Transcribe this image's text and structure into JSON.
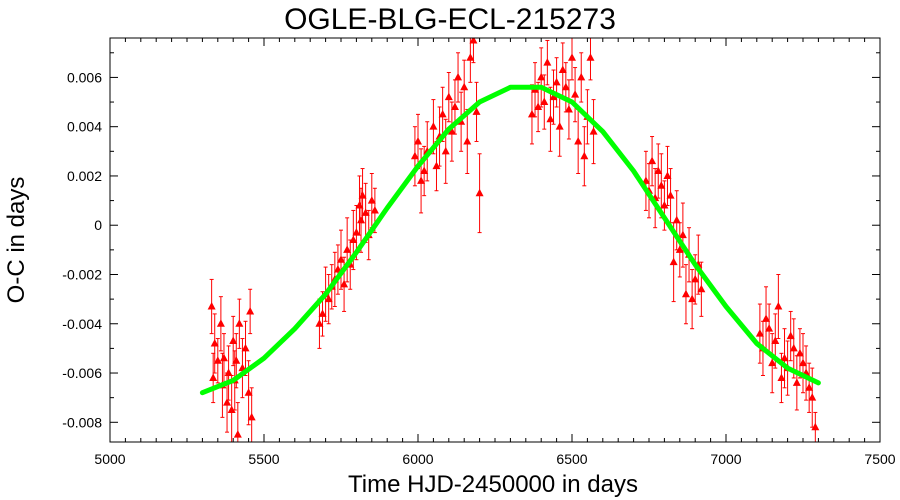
{
  "chart_data": {
    "type": "scatter",
    "title": "OGLE-BLG-ECL-215273",
    "xlabel": "Time HJD-2450000 in days",
    "ylabel": "O-C in days",
    "xlim": [
      5000,
      7500
    ],
    "ylim": [
      -0.0088,
      0.0076
    ],
    "x_ticks": [
      5000,
      5500,
      6000,
      6500,
      7000,
      7500
    ],
    "x_tick_labels": [
      "5000",
      "5500",
      "6000",
      "6500",
      "7000",
      "7500"
    ],
    "y_ticks": [
      -0.008,
      -0.006,
      -0.004,
      -0.002,
      0,
      0.002,
      0.004,
      0.006
    ],
    "y_tick_labels": [
      "-0.008",
      "-0.006",
      "-0.004",
      "-0.002",
      "0",
      "0.002",
      "0.004",
      "0.006"
    ],
    "grid": false,
    "colors": {
      "points": "#ff0000",
      "model": "#00ff00",
      "axes": "#000000"
    },
    "series": [
      {
        "marker": "triangle",
        "color": "#ff0000",
        "x": [
          5330,
          5335,
          5340,
          5350,
          5360,
          5365,
          5370,
          5380,
          5385,
          5395,
          5400,
          5405,
          5410,
          5415,
          5420,
          5430,
          5440,
          5450,
          5455,
          5460,
          5680,
          5690,
          5700,
          5710,
          5720,
          5730,
          5740,
          5750,
          5760,
          5770,
          5780,
          5790,
          5800,
          5810,
          5815,
          5820,
          5830,
          5840,
          5850,
          5860,
          5990,
          6000,
          6010,
          6020,
          6030,
          6050,
          6060,
          6070,
          6080,
          6090,
          6100,
          6110,
          6120,
          6130,
          6140,
          6150,
          6160,
          6170,
          6180,
          6190,
          6200,
          6370,
          6380,
          6390,
          6400,
          6410,
          6420,
          6430,
          6440,
          6450,
          6460,
          6470,
          6480,
          6490,
          6500,
          6510,
          6520,
          6530,
          6540,
          6550,
          6560,
          6570,
          6740,
          6750,
          6760,
          6770,
          6780,
          6790,
          6800,
          6810,
          6820,
          6830,
          6840,
          6850,
          6860,
          6870,
          6880,
          6890,
          6900,
          6910,
          6920,
          7110,
          7120,
          7130,
          7140,
          7150,
          7160,
          7170,
          7180,
          7190,
          7200,
          7210,
          7220,
          7230,
          7240,
          7250,
          7260,
          7270,
          7280,
          7290
        ],
        "y": [
          -0.0033,
          -0.0062,
          -0.0048,
          -0.0055,
          -0.004,
          -0.0065,
          -0.0054,
          -0.0072,
          -0.006,
          -0.0075,
          -0.0047,
          -0.0063,
          -0.0055,
          -0.0085,
          -0.004,
          -0.0058,
          -0.005,
          -0.0068,
          -0.0035,
          -0.0078,
          -0.004,
          -0.0036,
          -0.0028,
          -0.003,
          -0.0025,
          -0.0022,
          -0.0018,
          -0.0014,
          -0.0024,
          -0.001,
          -0.0016,
          -0.0006,
          -0.0003,
          0.0008,
          0.0002,
          0.0012,
          0.0005,
          -0.0004,
          0.001,
          0.0006,
          0.0028,
          0.0034,
          0.0018,
          0.0022,
          0.003,
          0.004,
          0.0024,
          0.0036,
          0.0045,
          0.003,
          0.0052,
          0.0038,
          0.0048,
          0.006,
          0.0042,
          0.0056,
          0.0034,
          0.0068,
          0.0075,
          0.0046,
          0.0013,
          0.0045,
          0.0055,
          0.0048,
          0.006,
          0.005,
          0.0066,
          0.0043,
          0.0052,
          0.0058,
          0.004,
          0.0063,
          0.0056,
          0.0047,
          0.0068,
          0.0053,
          0.0034,
          0.006,
          0.0028,
          0.0044,
          0.0068,
          0.0038,
          0.0018,
          0.0014,
          0.0026,
          0.0011,
          0.0022,
          0.0016,
          0.0008,
          0.002,
          0.0012,
          -0.0015,
          0.0002,
          -0.001,
          -0.0004,
          -0.0028,
          -0.0012,
          -0.003,
          -0.0022,
          -0.0016,
          -0.0026,
          -0.0044,
          -0.005,
          -0.0038,
          -0.0042,
          -0.0056,
          -0.0047,
          -0.0033,
          -0.0062,
          -0.0054,
          -0.0058,
          -0.0045,
          -0.005,
          -0.0064,
          -0.0052,
          -0.0056,
          -0.006,
          -0.0066,
          -0.007,
          -0.0082
        ],
        "err": [
          0.0011,
          0.001,
          0.0012,
          0.0009,
          0.0011,
          0.0013,
          0.001,
          0.0012,
          0.0011,
          0.0014,
          0.001,
          0.0012,
          0.0011,
          0.0013,
          0.001,
          0.0012,
          0.0011,
          0.0013,
          0.0009,
          0.0012,
          0.001,
          0.0009,
          0.0011,
          0.001,
          0.0009,
          0.0011,
          0.001,
          0.0012,
          0.0011,
          0.0013,
          0.001,
          0.0012,
          0.0011,
          0.0012,
          0.0013,
          0.0011,
          0.0012,
          0.001,
          0.0011,
          0.0009,
          0.0012,
          0.0011,
          0.0013,
          0.001,
          0.0012,
          0.0011,
          0.001,
          0.0012,
          0.0011,
          0.0013,
          0.001,
          0.0012,
          0.0011,
          0.001,
          0.0012,
          0.0011,
          0.0013,
          0.001,
          0.0009,
          0.0012,
          0.0016,
          0.0012,
          0.0011,
          0.001,
          0.0012,
          0.0011,
          0.0009,
          0.0013,
          0.0011,
          0.001,
          0.0012,
          0.0011,
          0.001,
          0.0012,
          0.0009,
          0.0011,
          0.0013,
          0.001,
          0.0012,
          0.0011,
          0.0009,
          0.0013,
          0.0012,
          0.0011,
          0.001,
          0.0012,
          0.0011,
          0.0013,
          0.001,
          0.0012,
          0.0011,
          0.0016,
          0.0012,
          0.0011,
          0.0013,
          0.0012,
          0.0011,
          0.0012,
          0.001,
          0.0012,
          0.0011,
          0.0012,
          0.0011,
          0.0013,
          0.001,
          0.0012,
          0.0011,
          0.0013,
          0.001,
          0.0012,
          0.0011,
          0.001,
          0.0012,
          0.0011,
          0.001,
          0.0012,
          0.0011,
          0.001,
          0.0012,
          0.0006
        ]
      },
      {
        "type": "line",
        "color": "#00ff00",
        "x": [
          5300,
          5400,
          5500,
          5600,
          5700,
          5800,
          5900,
          6000,
          6100,
          6200,
          6300,
          6400,
          6500,
          6600,
          6700,
          6800,
          6900,
          7000,
          7100,
          7200,
          7300
        ],
        "y": [
          -0.0068,
          -0.0063,
          -0.0054,
          -0.0042,
          -0.0028,
          -0.0011,
          0.0007,
          0.0024,
          0.0039,
          0.005,
          0.0056,
          0.0056,
          0.005,
          0.0038,
          0.0022,
          0.0003,
          -0.0016,
          -0.0033,
          -0.0048,
          -0.0058,
          -0.0064
        ]
      }
    ]
  }
}
